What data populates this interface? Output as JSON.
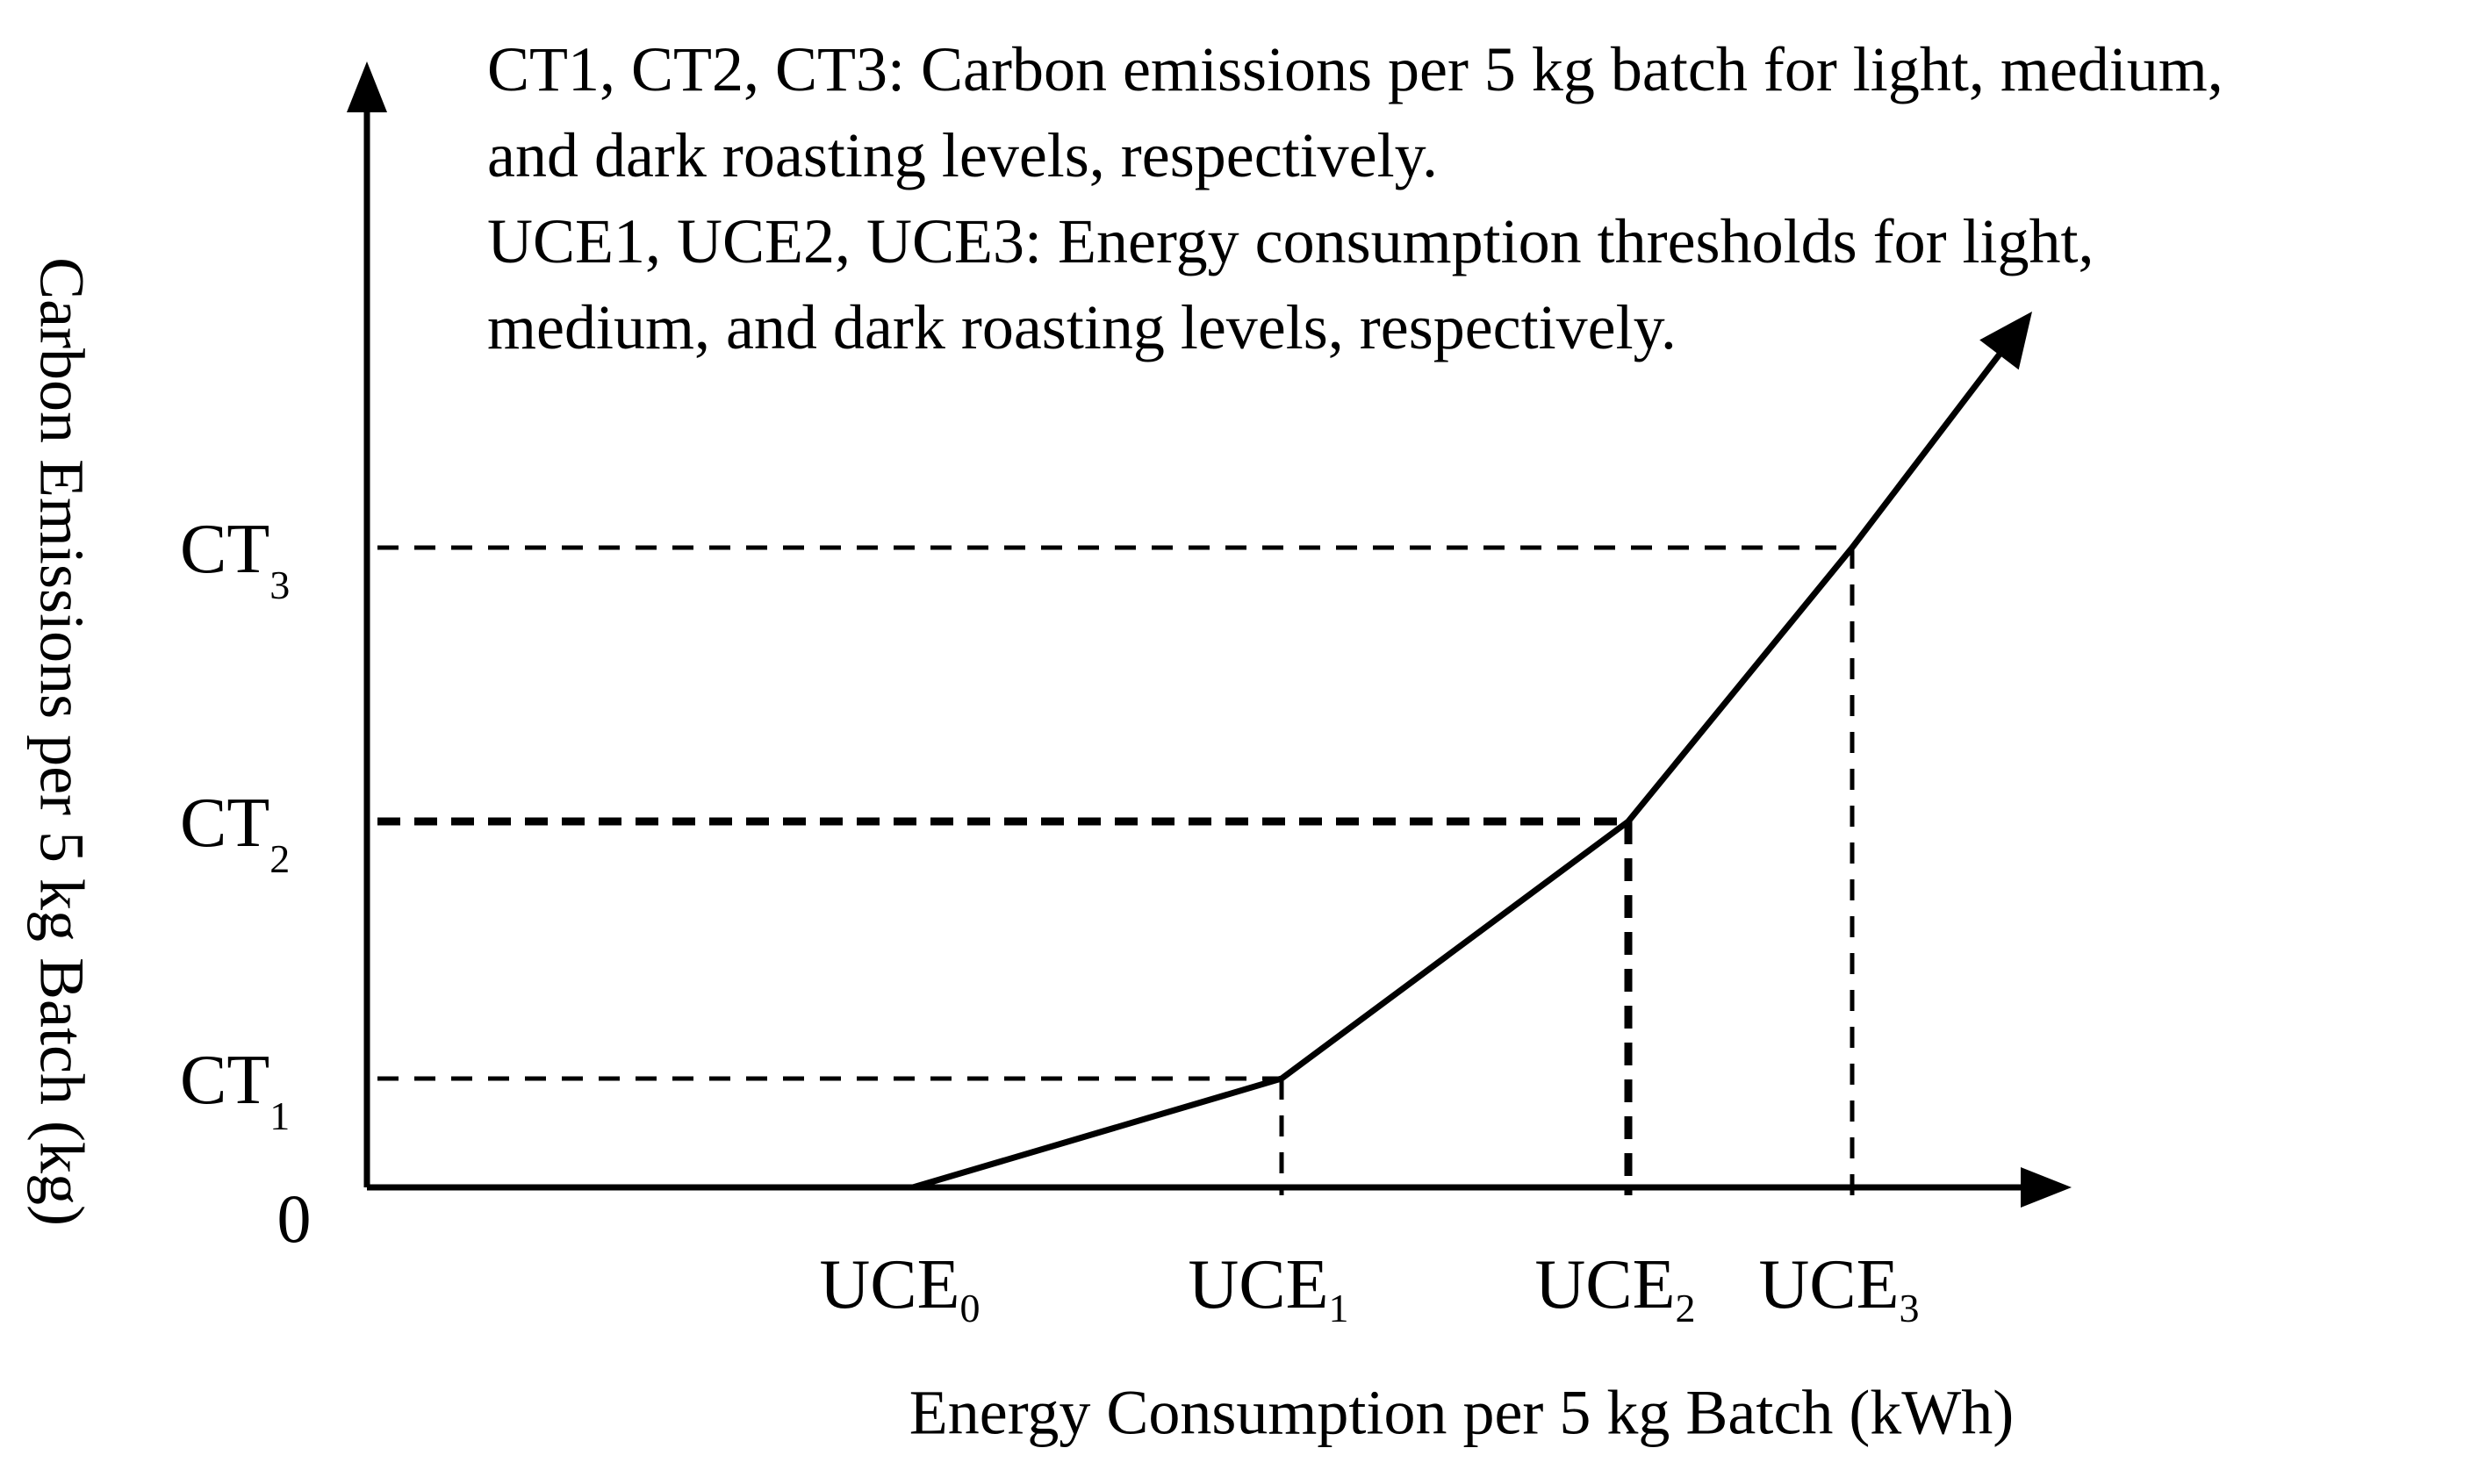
{
  "notes": {
    "line1": "CT1, CT2, CT3: Carbon emissions per 5 kg batch for light, medium,",
    "line2": "and dark roasting levels, respectively.",
    "line3": "UCE1, UCE2, UCE3: Energy consumption thresholds for light,",
    "line4": "medium, and dark roasting levels, respectively."
  },
  "chart_data": {
    "type": "line",
    "title": "",
    "xlabel": "Energy Consumption per 5 kg Batch (kWh)",
    "ylabel": "Carbon Emissions per 5 kg Batch (kg)",
    "origin_label": "0",
    "x_ticks": [
      {
        "base": "UCE",
        "sub": "0",
        "x": 1.0
      },
      {
        "base": "UCE",
        "sub": "1",
        "x": 2.0
      },
      {
        "base": "UCE",
        "sub": "2",
        "x": 3.0
      },
      {
        "base": "UCE",
        "sub": "3",
        "x": 3.65
      }
    ],
    "y_ticks": [
      {
        "base": "CT",
        "sub": "1",
        "y": 1.0
      },
      {
        "base": "CT",
        "sub": "2",
        "y": 3.35
      },
      {
        "base": "CT",
        "sub": "3",
        "y": 5.9
      }
    ],
    "series": [
      {
        "name": "Carbon emissions",
        "points": [
          [
            1.0,
            0
          ],
          [
            2.0,
            1.0
          ],
          [
            3.0,
            3.35
          ],
          [
            3.65,
            5.9
          ],
          [
            4.2,
            7.85
          ]
        ],
        "arrow_end": true
      }
    ],
    "guides": [
      {
        "x": 2.0,
        "y": 1.0,
        "weight": "thin"
      },
      {
        "x": 3.0,
        "y": 3.35,
        "weight": "thick"
      },
      {
        "x": 3.65,
        "y": 5.9,
        "weight": "thin"
      }
    ],
    "xlim": [
      -1.05,
      4.3
    ],
    "ylim": [
      0,
      10
    ],
    "grid": false,
    "legend": "none"
  }
}
